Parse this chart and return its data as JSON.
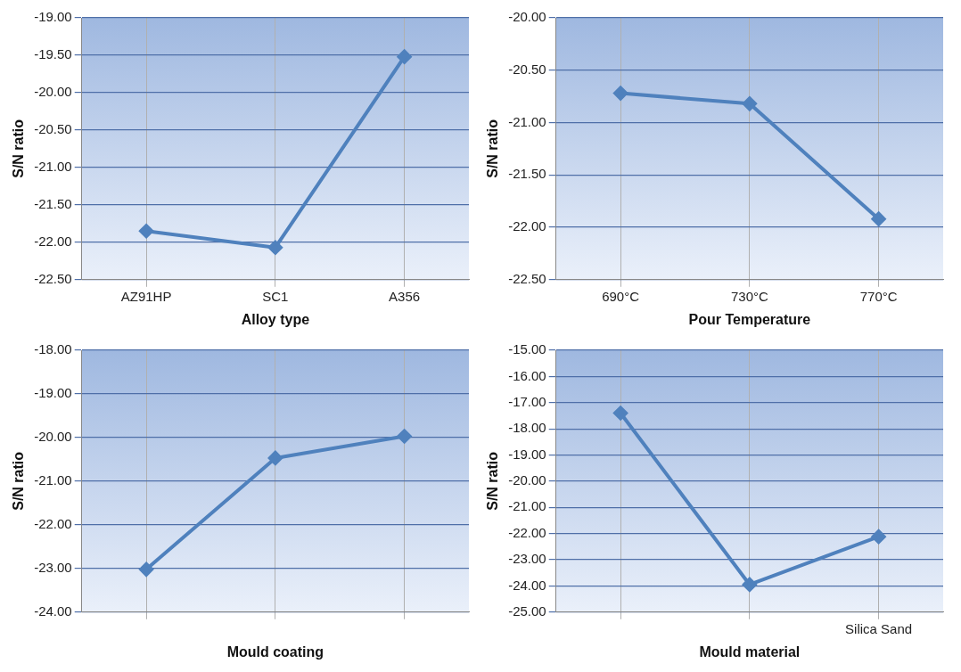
{
  "chart_data": [
    {
      "type": "line",
      "xlabel": "Alloy type",
      "ylabel": "S/N ratio",
      "categories": [
        "AZ91HP",
        "SC1",
        "A356"
      ],
      "series": [
        {
          "color": "#4f81bd",
          "values": [
            -21.85,
            -22.07,
            -19.52
          ]
        }
      ],
      "ylim": [
        -22.5,
        -19
      ],
      "yticks": [
        {
          "value": -22.5,
          "label": "-22.50"
        },
        {
          "value": -22,
          "label": "-22.00"
        },
        {
          "value": -21.5,
          "label": "-21.50"
        },
        {
          "value": -21,
          "label": "-21.00"
        },
        {
          "value": -20.5,
          "label": "-20.50"
        },
        {
          "value": -20,
          "label": "-20.00"
        },
        {
          "value": -19.5,
          "label": "-19.50"
        },
        {
          "value": -19,
          "label": "-19.00"
        }
      ],
      "grid": true,
      "marker": "diamond",
      "legend": false
    },
    {
      "type": "line",
      "xlabel": "Pour Temperature",
      "ylabel": "S/N ratio",
      "categories": [
        "690°C",
        "730°C",
        "770°C"
      ],
      "series": [
        {
          "color": "#4f81bd",
          "values": [
            -20.72,
            -20.82,
            -21.92
          ]
        }
      ],
      "ylim": [
        -22.5,
        -20
      ],
      "yticks": [
        {
          "value": -22.5,
          "label": "-22.50"
        },
        {
          "value": -22,
          "label": "-22.00"
        },
        {
          "value": -21.5,
          "label": "-21.50"
        },
        {
          "value": -21,
          "label": "-21.00"
        },
        {
          "value": -20.5,
          "label": "-20.50"
        },
        {
          "value": -20,
          "label": "-20.00"
        }
      ],
      "grid": true,
      "marker": "diamond",
      "legend": false
    },
    {
      "type": "line",
      "xlabel": "Mould coating",
      "ylabel": "S/N ratio",
      "categories": [
        null,
        null,
        null
      ],
      "series": [
        {
          "color": "#4f81bd",
          "values": [
            -23.02,
            -20.47,
            -19.97
          ]
        }
      ],
      "ylim": [
        -24,
        -18
      ],
      "yticks": [
        {
          "value": -24,
          "label": "-24.00"
        },
        {
          "value": -23,
          "label": "-23.00"
        },
        {
          "value": -22,
          "label": "-22.00"
        },
        {
          "value": -21,
          "label": "-21.00"
        },
        {
          "value": -20,
          "label": "-20.00"
        },
        {
          "value": -19,
          "label": "-19.00"
        },
        {
          "value": -18,
          "label": "-18.00"
        }
      ],
      "grid": true,
      "marker": "diamond",
      "legend": false
    },
    {
      "type": "line",
      "xlabel": "Mould material",
      "ylabel": "S/N ratio",
      "categories": [
        null,
        null,
        "Silica Sand"
      ],
      "series": [
        {
          "color": "#4f81bd",
          "values": [
            -17.4,
            -23.95,
            -22.12
          ]
        }
      ],
      "ylim": [
        -25,
        -15
      ],
      "yticks": [
        {
          "value": -25,
          "label": "-25.00"
        },
        {
          "value": -24,
          "label": "-24.00"
        },
        {
          "value": -23,
          "label": "-23.00"
        },
        {
          "value": -22,
          "label": "-22.00"
        },
        {
          "value": -21,
          "label": "-21.00"
        },
        {
          "value": -20,
          "label": "-20.00"
        },
        {
          "value": -19,
          "label": "-19.00"
        },
        {
          "value": -18,
          "label": "-18.00"
        },
        {
          "value": -17,
          "label": "-17.00"
        },
        {
          "value": -16,
          "label": "-16.00"
        },
        {
          "value": -15,
          "label": "-15.00"
        }
      ],
      "grid": true,
      "marker": "diamond",
      "legend": false
    }
  ]
}
